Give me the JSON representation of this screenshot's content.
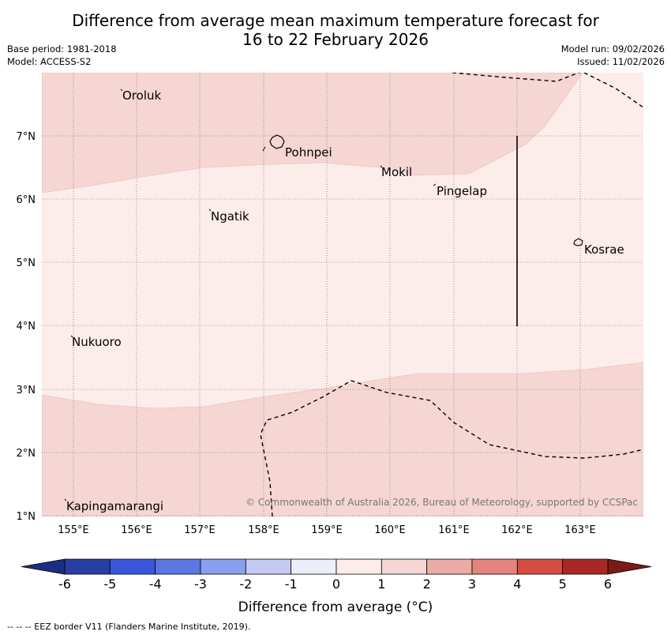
{
  "title": {
    "line1": "Difference from average mean maximum temperature forecast for",
    "line2": "16 to 22 February 2026"
  },
  "meta": {
    "base_period": "Base period: 1981-2018",
    "model": "Model: ACCESS-S2",
    "model_run": "Model run: 09/02/2026",
    "issued": "Issued: 11/02/2026"
  },
  "map": {
    "lon_labels": [
      "155°E",
      "156°E",
      "157°E",
      "158°E",
      "159°E",
      "160°E",
      "161°E",
      "162°E",
      "163°E"
    ],
    "lat_labels": [
      "7°N",
      "6°N",
      "5°N",
      "4°N",
      "3°N",
      "2°N",
      "1°N"
    ],
    "places": [
      {
        "name": "Oroluk"
      },
      {
        "name": "Pohnpei"
      },
      {
        "name": "Mokil"
      },
      {
        "name": "Pingelap"
      },
      {
        "name": "Ngatik"
      },
      {
        "name": "Kosrae"
      },
      {
        "name": "Nukuoro"
      },
      {
        "name": "Kapingamarangi"
      }
    ],
    "copyright": "© Commonwealth of Australia 2026, Bureau of Meteorology, supported by CCSPac"
  },
  "legend": {
    "ticks": [
      "-6",
      "-5",
      "-4",
      "-3",
      "-2",
      "-1",
      "0",
      "1",
      "2",
      "3",
      "4",
      "5",
      "6"
    ],
    "colors": [
      "#283ea5",
      "#3a57dc",
      "#5b77e2",
      "#8a9ff0",
      "#c3cbf5",
      "#eceef9",
      "#fcecea",
      "#f5d6d3",
      "#edaba6",
      "#e5847c",
      "#d54c40",
      "#a82824"
    ],
    "under_color": "#1d2e82",
    "over_color": "#7a1b18",
    "label": "Difference from average (°C)"
  },
  "footer": {
    "eez_note": "--  --  -- EEZ border V11 (Flanders Marine Institute, 2019)."
  }
}
